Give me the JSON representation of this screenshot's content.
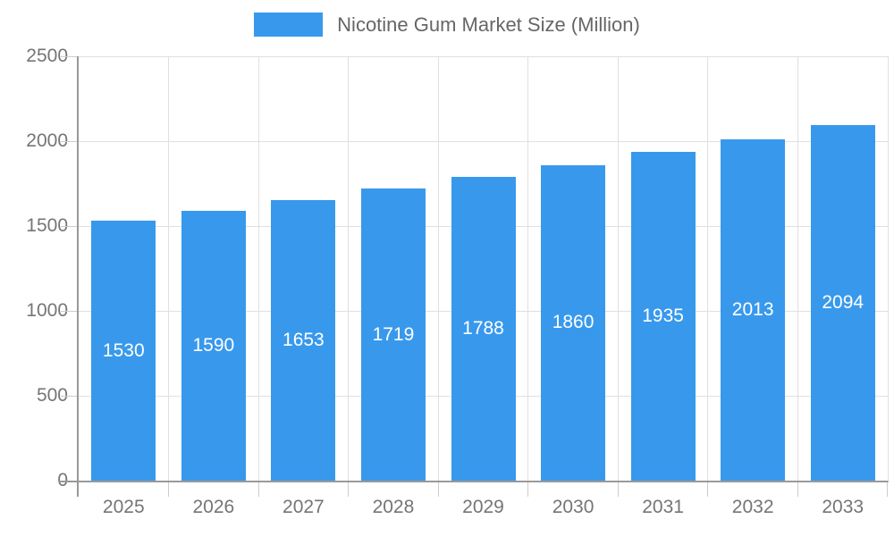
{
  "legend": {
    "label": "Nicotine Gum Market Size (Million)"
  },
  "chart_data": {
    "type": "bar",
    "title": "Nicotine Gum Market Size (Million)",
    "categories": [
      "2025",
      "2026",
      "2027",
      "2028",
      "2029",
      "2030",
      "2031",
      "2032",
      "2033"
    ],
    "values": [
      1530,
      1590,
      1653,
      1719,
      1788,
      1860,
      1935,
      2013,
      2094
    ],
    "y_ticks": [
      0,
      500,
      1000,
      1500,
      2000,
      2500
    ],
    "ylim": [
      0,
      2500
    ],
    "xlabel": "",
    "ylabel": "",
    "grid": true,
    "legend_position": "top",
    "colors": {
      "bar": "#3899EC",
      "value_label": "#ffffff",
      "tick_label": "#757575",
      "legend_text": "#666666",
      "axis_line": "#999999",
      "gridline": "#e0e0e0"
    }
  }
}
